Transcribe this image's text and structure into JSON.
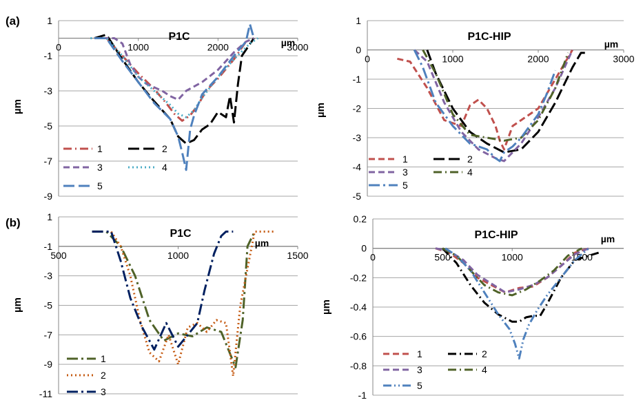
{
  "panels": {
    "a": "(a)",
    "b": "(b)"
  },
  "chart_data": [
    {
      "type": "line",
      "title": "P1C",
      "xlabel": "µm",
      "ylabel": "µm",
      "xlim": [
        0,
        3000
      ],
      "ylim": [
        -9,
        1
      ],
      "x_ticks": [
        "0",
        "1000",
        "2000",
        "3000"
      ],
      "y_ticks": [
        "1",
        "-1",
        "-3",
        "-5",
        "-7",
        "-9"
      ],
      "grid": "horizontal",
      "legend_position": "bottom-left",
      "series": [
        {
          "name": "1",
          "color": "#C0504D",
          "dash": "dash-dot",
          "x": [
            480,
            600,
            800,
            1000,
            1200,
            1350,
            1450,
            1550,
            1650,
            1750,
            1850,
            2000,
            2200,
            2350,
            2450
          ],
          "y": [
            0,
            0,
            -1,
            -2,
            -2.9,
            -3.7,
            -4.3,
            -4.7,
            -4.4,
            -3.8,
            -3.0,
            -2.3,
            -1.2,
            -0.2,
            0
          ]
        },
        {
          "name": "2",
          "color": "#000000",
          "dash": "long-dash",
          "x": [
            450,
            600,
            800,
            1000,
            1200,
            1400,
            1500,
            1600,
            1700,
            1800,
            1900,
            2000,
            2100,
            2150,
            2200,
            2250,
            2300,
            2450
          ],
          "y": [
            0,
            0.2,
            -1.2,
            -2.5,
            -3.6,
            -4.6,
            -5.6,
            -6.0,
            -5.8,
            -5.2,
            -4.9,
            -4.2,
            -4.5,
            -3.3,
            -4.8,
            -2.6,
            -1.0,
            0
          ]
        },
        {
          "name": "3",
          "color": "#8064A2",
          "dash": "dash",
          "x": [
            550,
            700,
            800,
            900,
            1000,
            1100,
            1200,
            1300,
            1400,
            1500,
            1600,
            1800,
            2000,
            2200,
            2350,
            2450
          ],
          "y": [
            0,
            0,
            -0.3,
            -1.5,
            -2.2,
            -2.6,
            -2.8,
            -3.0,
            -3.3,
            -3.5,
            -3.0,
            -2.5,
            -1.8,
            -0.8,
            -0.2,
            0
          ]
        },
        {
          "name": "4",
          "color": "#4BACC6",
          "dash": "dotted",
          "x": [
            400,
            600,
            800,
            1000,
            1200,
            1400,
            1500,
            1600,
            1700,
            1800,
            1900,
            2000,
            2200,
            2400,
            2500
          ],
          "y": [
            0,
            0,
            -1,
            -2.2,
            -3.0,
            -3.8,
            -4.3,
            -4.5,
            -4.1,
            -3.4,
            -2.8,
            -2.2,
            -1.2,
            -0.3,
            0
          ]
        },
        {
          "name": "5",
          "color": "#4F81BD",
          "dash": "long-dash",
          "x": [
            450,
            600,
            800,
            1000,
            1200,
            1400,
            1500,
            1550,
            1600,
            1650,
            1700,
            1800,
            2000,
            2200,
            2350,
            2400,
            2450
          ],
          "y": [
            0,
            0,
            -1.3,
            -2.5,
            -3.7,
            -4.6,
            -5.6,
            -6.5,
            -7.5,
            -5.2,
            -4.4,
            -3.2,
            -2.2,
            -1.0,
            -0.2,
            0.8,
            0
          ]
        }
      ]
    },
    {
      "type": "line",
      "title": "P1C-HIP",
      "xlabel": "µm",
      "ylabel": "µm",
      "xlim": [
        0,
        3000
      ],
      "ylim": [
        -5,
        1
      ],
      "x_ticks": [
        "0",
        "1000",
        "2000",
        "3000"
      ],
      "y_ticks": [
        "1",
        "0",
        "-1",
        "-2",
        "-3",
        "-4",
        "-5"
      ],
      "grid": "horizontal",
      "legend_position": "bottom-left",
      "series": [
        {
          "name": "1",
          "color": "#C0504D",
          "dash": "dash",
          "x": [
            350,
            500,
            700,
            900,
            1100,
            1200,
            1300,
            1400,
            1500,
            1550,
            1600,
            1650,
            1700,
            1800,
            2000,
            2200,
            2400
          ],
          "y": [
            -0.3,
            -0.4,
            -1.3,
            -2.4,
            -2.6,
            -1.9,
            -1.7,
            -2.0,
            -2.6,
            -3.1,
            -3.4,
            -3.0,
            -2.6,
            -2.4,
            -2.0,
            -1.0,
            0
          ]
        },
        {
          "name": "2",
          "color": "#000000",
          "dash": "long-dash",
          "x": [
            700,
            800,
            1000,
            1200,
            1400,
            1600,
            1800,
            2000,
            2200,
            2400,
            2500,
            2550
          ],
          "y": [
            0,
            -0.8,
            -2.0,
            -2.8,
            -3.2,
            -3.5,
            -3.4,
            -2.8,
            -1.8,
            -0.6,
            -0.1,
            -0.1
          ]
        },
        {
          "name": "3",
          "color": "#8064A2",
          "dash": "dash",
          "x": [
            550,
            700,
            900,
            1100,
            1300,
            1500,
            1600,
            1800,
            2000,
            2200,
            2400
          ],
          "y": [
            0,
            -0.4,
            -1.8,
            -2.8,
            -3.4,
            -3.7,
            -3.8,
            -3.2,
            -2.3,
            -1.3,
            0
          ]
        },
        {
          "name": "4",
          "color": "#4F6228",
          "dash": "dash-dot",
          "x": [
            650,
            800,
            1000,
            1200,
            1400,
            1600,
            1800,
            2000,
            2200,
            2350
          ],
          "y": [
            0,
            -0.8,
            -2.2,
            -2.9,
            -3.0,
            -3.1,
            -3.0,
            -2.4,
            -1.3,
            -0.1
          ]
        },
        {
          "name": "5",
          "color": "#4F81BD",
          "dash": "long-dash-dot",
          "x": [
            550,
            650,
            800,
            1000,
            1200,
            1400,
            1500,
            1550,
            1600,
            1700,
            1800,
            2000,
            2100,
            2200
          ],
          "y": [
            0,
            -0.6,
            -1.8,
            -2.6,
            -3.2,
            -3.4,
            -3.7,
            -3.8,
            -3.5,
            -3.3,
            -3.0,
            -2.2,
            -1.5,
            -0.7
          ]
        }
      ]
    },
    {
      "type": "line",
      "title": "P1C",
      "xlabel": "µm",
      "ylabel": "µm",
      "xlim": [
        500,
        1500
      ],
      "ylim": [
        -11,
        1
      ],
      "x_ticks": [
        "500",
        "1000",
        "1500"
      ],
      "y_ticks": [
        "1",
        "-1",
        "-3",
        "-5",
        "-7",
        "-9",
        "-11"
      ],
      "grid": "horizontal",
      "legend_position": "bottom-left",
      "series": [
        {
          "name": "1",
          "color": "#4F6228",
          "dash": "long-dash-dot",
          "x": [
            640,
            700,
            760,
            820,
            880,
            940,
            1000,
            1060,
            1120,
            1180,
            1240,
            1270,
            1290,
            1320
          ],
          "y": [
            0,
            0,
            -1,
            -3,
            -6,
            -7.4,
            -6.9,
            -7.1,
            -6.5,
            -6.8,
            -9.2,
            -6.0,
            -1.0,
            0
          ]
        },
        {
          "name": "2",
          "color": "#C55A11",
          "dash": "dotted",
          "x": [
            720,
            760,
            800,
            840,
            880,
            920,
            960,
            1000,
            1040,
            1080,
            1120,
            1160,
            1200,
            1230,
            1260,
            1290,
            1320,
            1360,
            1400
          ],
          "y": [
            0,
            -1,
            -3,
            -6,
            -8.2,
            -8.8,
            -7.0,
            -9.0,
            -6.5,
            -6.2,
            -6.8,
            -6.0,
            -6.2,
            -9.8,
            -5.0,
            -2.5,
            0,
            0,
            0
          ]
        },
        {
          "name": "3",
          "color": "#002060",
          "dash": "long-dash-dot",
          "x": [
            640,
            720,
            760,
            800,
            850,
            900,
            950,
            1000,
            1050,
            1080,
            1110,
            1150,
            1180,
            1200,
            1230
          ],
          "y": [
            0,
            0,
            -2,
            -4.5,
            -6.5,
            -8.0,
            -6.2,
            -7.8,
            -6.8,
            -6.2,
            -4.0,
            -1.5,
            -0.3,
            0,
            0
          ]
        }
      ]
    },
    {
      "type": "line",
      "title": "P1C-HIP",
      "xlabel": "µm",
      "ylabel": "µm",
      "xlim": [
        0,
        1800
      ],
      "ylim": [
        -1,
        0.2
      ],
      "x_ticks": [
        "0",
        "500",
        "1000",
        "1500"
      ],
      "y_ticks": [
        "0.2",
        "0",
        "-0.2",
        "-0.4",
        "-0.6",
        "-0.8",
        "-1"
      ],
      "grid": "horizontal",
      "legend_position": "bottom-left",
      "series": [
        {
          "name": "1",
          "color": "#C0504D",
          "dash": "dash",
          "x": [
            450,
            550,
            650,
            750,
            850,
            950,
            1050,
            1150,
            1250,
            1350,
            1450,
            1550
          ],
          "y": [
            0,
            -0.03,
            -0.1,
            -0.2,
            -0.25,
            -0.3,
            -0.27,
            -0.26,
            -0.2,
            -0.12,
            -0.03,
            0
          ]
        },
        {
          "name": "2",
          "color": "#000000",
          "dash": "dash-dot",
          "x": [
            500,
            600,
            700,
            800,
            900,
            1000,
            1050,
            1100,
            1150,
            1200,
            1250,
            1350,
            1450,
            1550,
            1620
          ],
          "y": [
            0,
            -0.1,
            -0.25,
            -0.37,
            -0.45,
            -0.5,
            -0.5,
            -0.47,
            -0.46,
            -0.46,
            -0.38,
            -0.2,
            -0.08,
            -0.05,
            -0.03
          ]
        },
        {
          "name": "3",
          "color": "#8064A2",
          "dash": "dash",
          "x": [
            450,
            550,
            650,
            750,
            850,
            950,
            1050,
            1150,
            1250,
            1350,
            1450,
            1550
          ],
          "y": [
            0,
            -0.02,
            -0.08,
            -0.18,
            -0.24,
            -0.3,
            -0.28,
            -0.25,
            -0.2,
            -0.12,
            -0.04,
            0
          ]
        },
        {
          "name": "4",
          "color": "#4F6228",
          "dash": "dash-dot",
          "x": [
            500,
            600,
            700,
            800,
            900,
            1000,
            1100,
            1200,
            1300,
            1400,
            1500
          ],
          "y": [
            0,
            -0.05,
            -0.15,
            -0.25,
            -0.3,
            -0.32,
            -0.28,
            -0.22,
            -0.15,
            -0.05,
            0
          ]
        },
        {
          "name": "5",
          "color": "#4F81BD",
          "dash": "dash-dot-dot",
          "x": [
            520,
            600,
            700,
            800,
            900,
            980,
            1020,
            1050,
            1080,
            1120,
            1180,
            1250,
            1350,
            1450,
            1550
          ],
          "y": [
            0,
            -0.05,
            -0.15,
            -0.3,
            -0.45,
            -0.55,
            -0.65,
            -0.75,
            -0.62,
            -0.52,
            -0.42,
            -0.32,
            -0.2,
            -0.08,
            0
          ]
        }
      ]
    }
  ]
}
